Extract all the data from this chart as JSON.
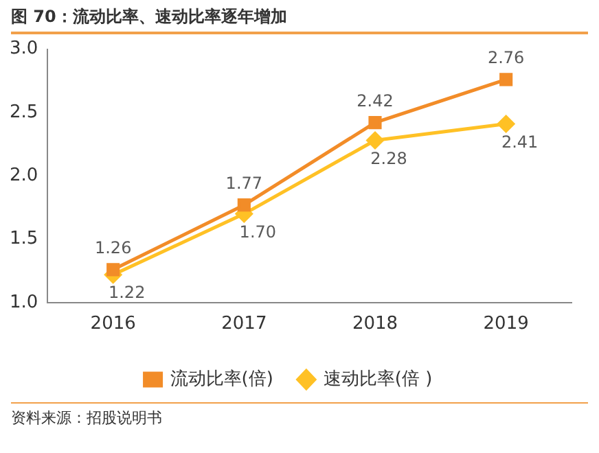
{
  "chart_data": {
    "type": "line",
    "title": "图 70：流动比率、速动比率逐年增加",
    "categories": [
      "2016",
      "2017",
      "2018",
      "2019"
    ],
    "series": [
      {
        "name": "流动比率(倍)",
        "color": "#f28c28",
        "values": [
          1.26,
          1.77,
          2.42,
          2.76
        ],
        "marker": "square"
      },
      {
        "name": "速动比率(倍 )",
        "color": "#ffc125",
        "values": [
          1.22,
          1.7,
          2.28,
          2.41
        ],
        "value_labels": [
          "1.22",
          "1.70",
          "2.28",
          "2.41"
        ],
        "marker": "diamond"
      }
    ],
    "ylim": [
      1.0,
      3.0
    ],
    "yticks": [
      {
        "value": 1.0,
        "label": "1.0"
      },
      {
        "value": 1.5,
        "label": "1.5"
      },
      {
        "value": 2.0,
        "label": "2.0"
      },
      {
        "value": 2.5,
        "label": "2.5"
      },
      {
        "value": 3.0,
        "label": "3.0"
      }
    ],
    "grid": false,
    "legend": "bottom",
    "data_labels": true,
    "annotations": [
      "资料来源：招股说明书"
    ]
  }
}
